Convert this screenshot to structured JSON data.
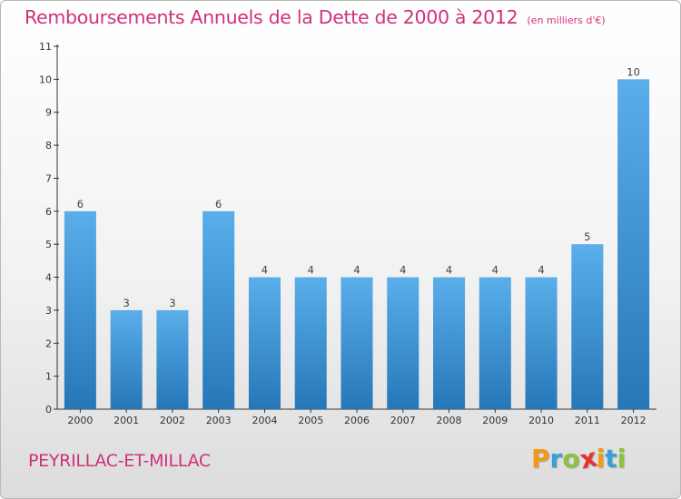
{
  "header": {
    "title": "Remboursements Annuels de la Dette de 2000 à 2012",
    "subtitle": "(en milliers d'€)"
  },
  "footer": {
    "commune": "PEYRILLAC-ET-MILLAC",
    "logo_letters": [
      "P",
      "r",
      "o",
      "x",
      "i",
      "t",
      "i"
    ],
    "logo_colors": [
      "#f29a16",
      "#3aa0d8",
      "#8cc23f",
      "#e3342f",
      "#f29a16",
      "#3aa0d8",
      "#8cc23f"
    ]
  },
  "chart_data": {
    "type": "bar",
    "title": "Remboursements Annuels de la Dette de 2000 à 2012",
    "subtitle": "(en milliers d'€)",
    "categories": [
      "2000",
      "2001",
      "2002",
      "2003",
      "2004",
      "2005",
      "2006",
      "2007",
      "2008",
      "2009",
      "2010",
      "2011",
      "2012"
    ],
    "values": [
      6,
      3,
      3,
      6,
      4,
      4,
      4,
      4,
      4,
      4,
      4,
      5,
      10
    ],
    "ylim": [
      0,
      11
    ],
    "yticks": [
      0,
      1,
      2,
      3,
      4,
      5,
      6,
      7,
      8,
      9,
      10,
      11
    ],
    "grid": false,
    "bar_color_top": "#5aaeea",
    "bar_color_bottom": "#2677b8"
  }
}
